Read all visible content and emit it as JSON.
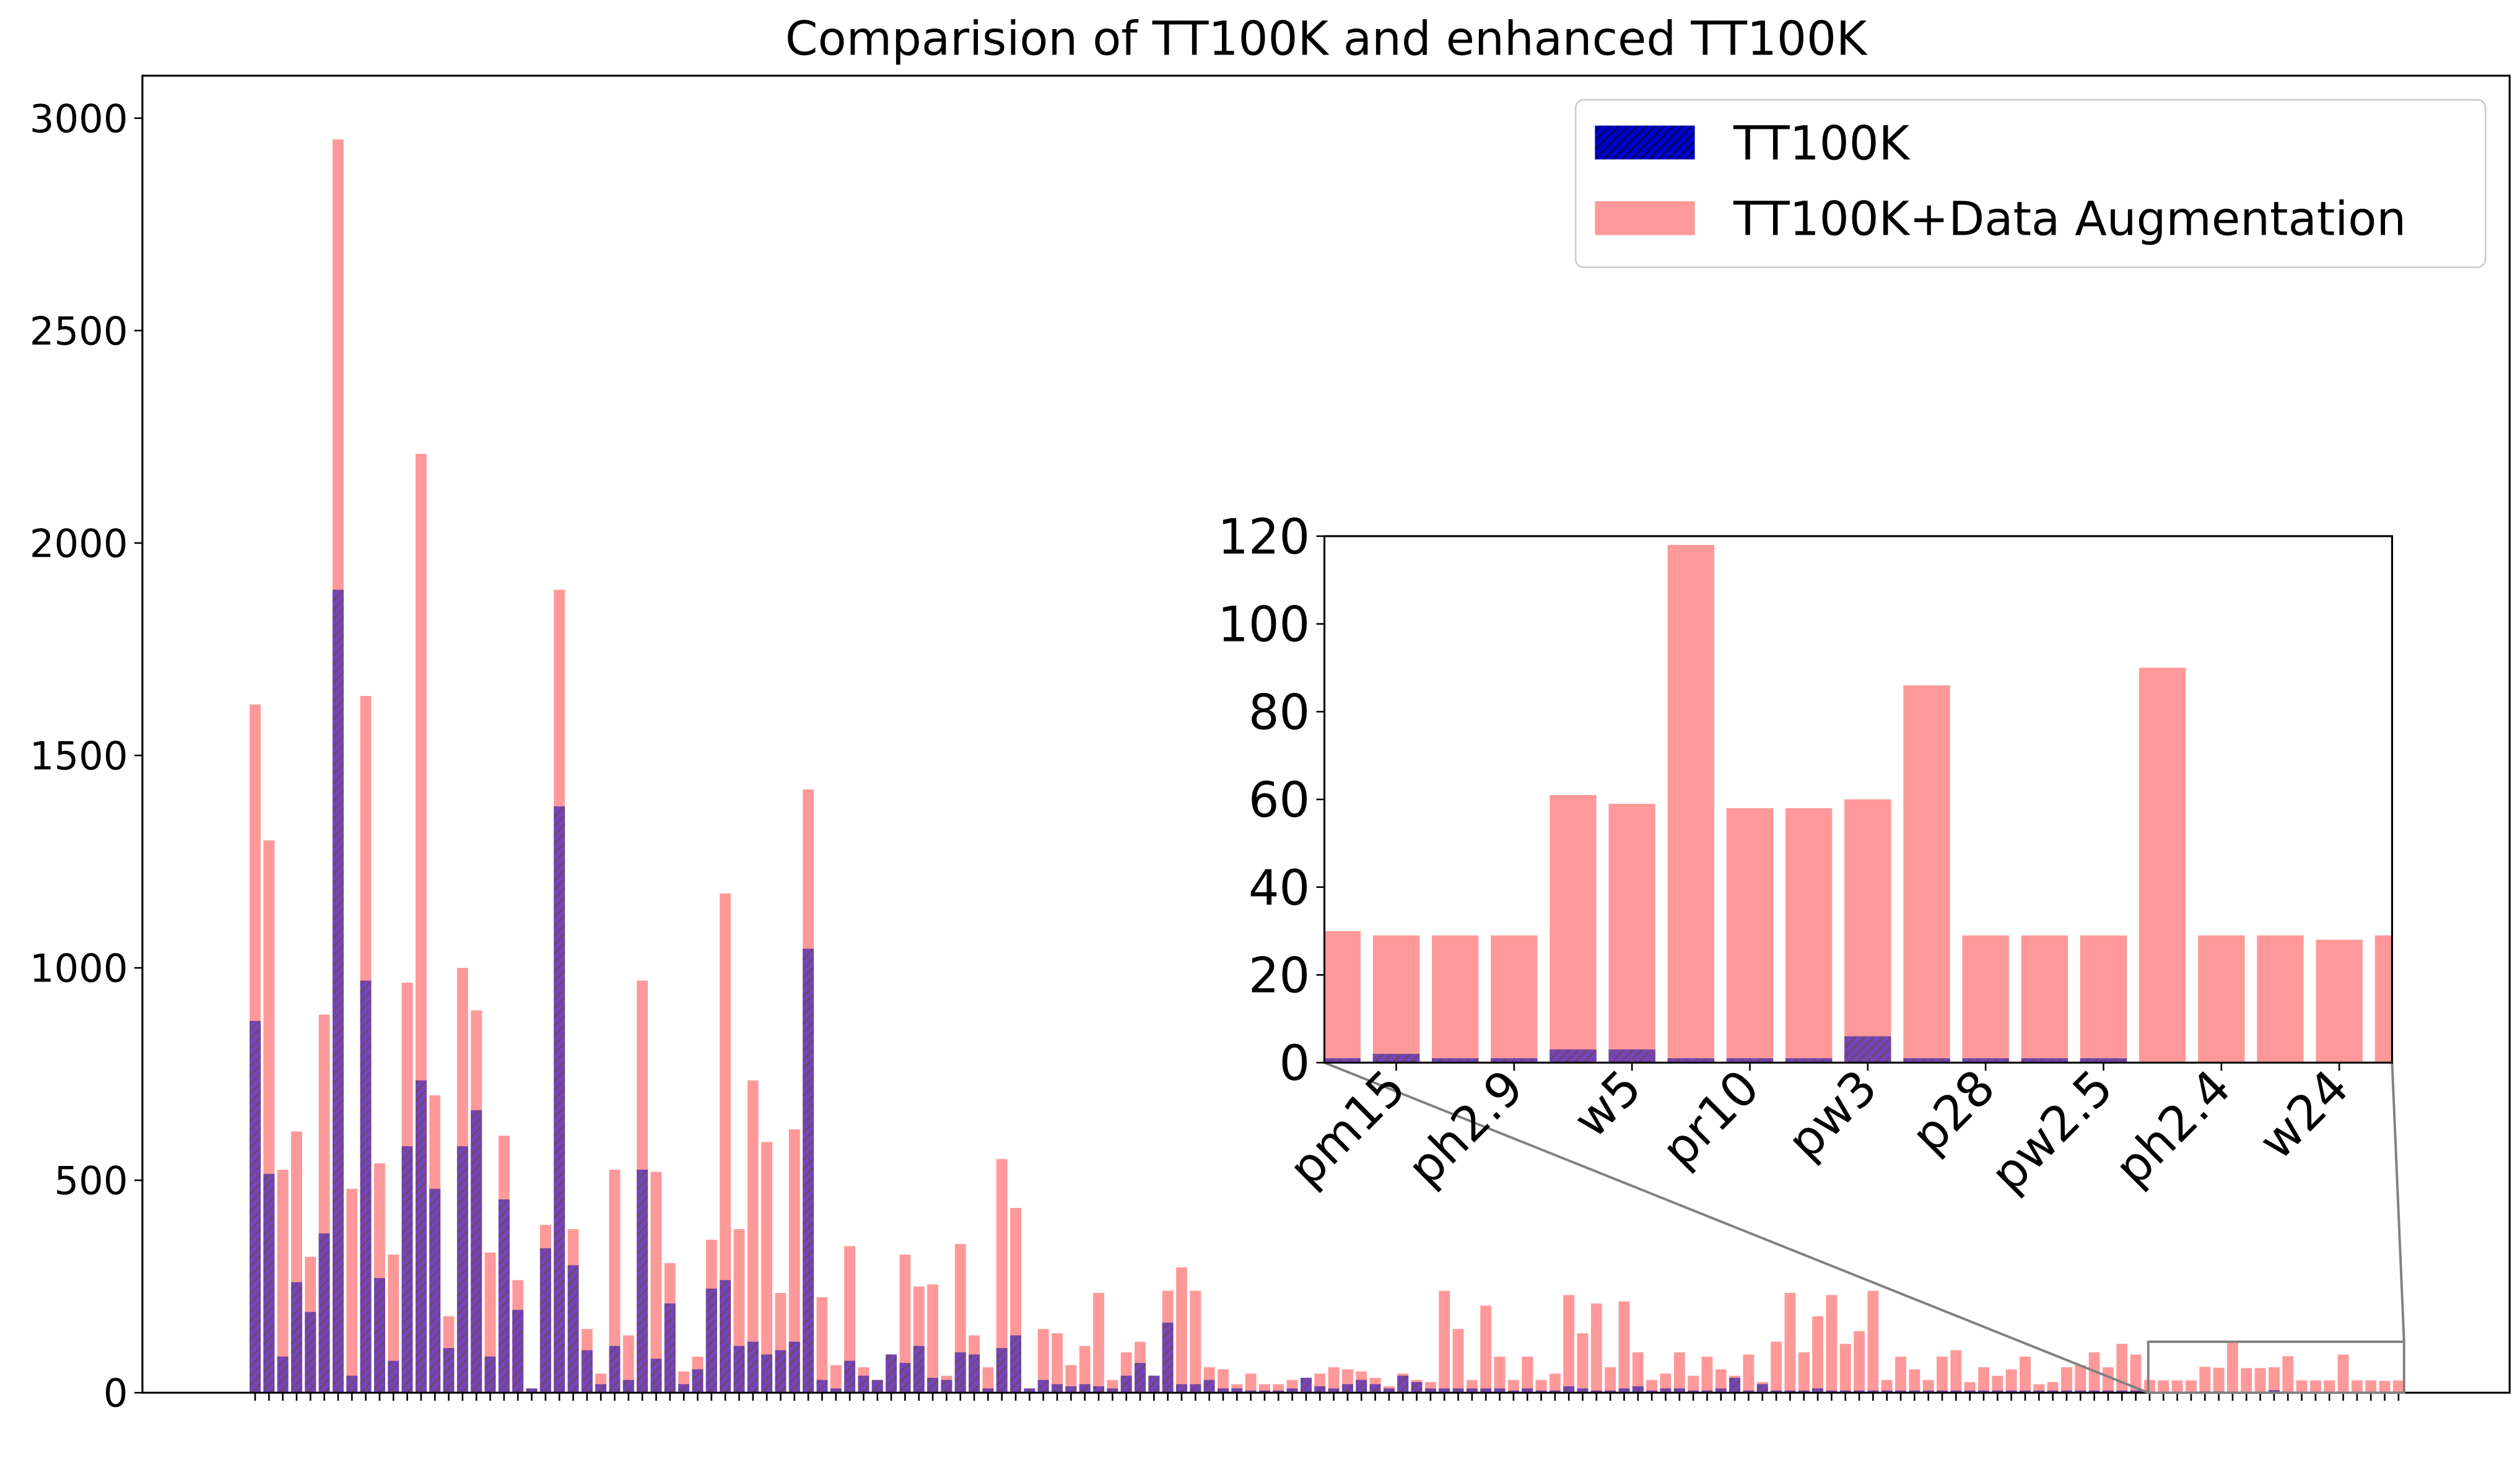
{
  "chart_data": [
    {
      "type": "bar",
      "title": "Comparision of TT100K and enhanced TT100K",
      "categories": [
        null,
        null,
        null,
        null,
        null,
        null,
        null,
        null,
        null,
        null,
        null,
        null,
        null,
        null,
        null,
        null,
        null,
        null,
        null,
        null,
        null,
        null,
        null,
        null,
        null,
        null,
        null,
        null,
        null,
        null,
        null,
        null,
        null,
        null,
        null,
        null,
        null,
        null,
        null,
        null,
        null,
        null,
        null,
        null,
        null,
        null,
        null,
        null,
        null,
        null,
        null,
        null,
        null,
        null,
        null,
        null,
        null,
        null,
        null,
        null,
        null,
        null,
        null,
        null,
        null,
        null,
        null,
        null,
        null,
        null,
        null,
        null,
        null,
        null,
        null,
        null,
        null,
        null,
        null,
        null,
        null,
        null,
        null,
        null,
        null,
        null,
        null,
        null,
        null,
        null,
        null,
        null,
        null,
        null,
        null,
        null,
        null,
        null,
        null,
        null,
        null,
        null,
        null,
        null,
        null,
        null,
        null,
        null,
        null,
        null,
        null,
        null,
        null,
        null,
        null,
        null,
        null,
        null,
        null,
        null,
        null,
        null,
        null,
        null,
        null,
        null,
        null,
        null,
        null,
        null,
        null,
        null,
        null,
        null,
        null,
        null,
        null,
        null,
        null,
        null,
        null,
        null,
        null,
        null,
        null,
        null,
        null,
        null,
        null,
        null,
        null,
        null,
        null,
        null,
        null,
        null
      ],
      "series": [
        {
          "name": "TT100K",
          "color": "#0000cc",
          "hatch": true,
          "values": [
            875,
            515,
            85,
            260,
            190,
            375,
            1890,
            40,
            970,
            270,
            75,
            580,
            735,
            480,
            105,
            580,
            665,
            85,
            455,
            195,
            10,
            340,
            1380,
            300,
            100,
            20,
            110,
            30,
            525,
            80,
            210,
            20,
            55,
            245,
            265,
            110,
            120,
            90,
            100,
            120,
            1045,
            30,
            10,
            75,
            40,
            30,
            90,
            70,
            110,
            35,
            30,
            95,
            90,
            10,
            105,
            135,
            10,
            30,
            20,
            15,
            20,
            15,
            10,
            40,
            70,
            40,
            165,
            20,
            20,
            30,
            10,
            10,
            5,
            5,
            5,
            10,
            35,
            15,
            10,
            20,
            30,
            20,
            10,
            40,
            25,
            10,
            10,
            10,
            10,
            10,
            10,
            5,
            10,
            5,
            5,
            15,
            10,
            5,
            5,
            10,
            15,
            5,
            10,
            10,
            5,
            5,
            10,
            35,
            5,
            20,
            5,
            5,
            5,
            10,
            5,
            5,
            5,
            5,
            5,
            5,
            5,
            5,
            5,
            5,
            5,
            5,
            5,
            5,
            5,
            5,
            5,
            5,
            5,
            5,
            5,
            5,
            5,
            1,
            2,
            1,
            1,
            3,
            3,
            1,
            1,
            1,
            6,
            1,
            1,
            1,
            1,
            0,
            0,
            0,
            0,
            0
          ]
        },
        {
          "name": "TT100K+Data Augmentation",
          "color": "#ff9999",
          "values": [
            1620,
            1300,
            525,
            615,
            320,
            890,
            2950,
            480,
            1640,
            540,
            325,
            965,
            2210,
            700,
            180,
            1000,
            900,
            330,
            605,
            265,
            10,
            395,
            1890,
            385,
            150,
            45,
            525,
            135,
            970,
            520,
            305,
            50,
            85,
            360,
            1175,
            385,
            735,
            590,
            235,
            620,
            1420,
            225,
            65,
            345,
            60,
            30,
            90,
            325,
            250,
            255,
            40,
            350,
            135,
            60,
            550,
            435,
            10,
            150,
            140,
            65,
            110,
            235,
            30,
            95,
            120,
            40,
            240,
            295,
            240,
            60,
            55,
            20,
            45,
            20,
            20,
            30,
            35,
            45,
            60,
            55,
            50,
            35,
            15,
            45,
            30,
            25,
            240,
            150,
            30,
            205,
            85,
            30,
            85,
            30,
            45,
            230,
            140,
            210,
            60,
            215,
            95,
            30,
            45,
            95,
            40,
            85,
            55,
            40,
            90,
            25,
            120,
            235,
            95,
            180,
            230,
            115,
            145,
            240,
            30,
            85,
            55,
            30,
            85,
            100,
            25,
            60,
            40,
            55,
            85,
            20,
            25,
            60,
            65,
            95,
            60,
            115,
            90,
            30,
            29,
            29,
            29,
            61,
            59,
            118,
            58,
            58,
            60,
            86,
            29,
            29,
            29,
            90,
            29,
            29,
            28,
            29
          ]
        }
      ],
      "ylim": [
        0,
        3100
      ],
      "yticks": [
        0,
        500,
        1000,
        1500,
        2000,
        2500,
        3000
      ],
      "legend": "upper right"
    },
    {
      "type": "bar",
      "categories": [
        null,
        "pm15",
        null,
        "ph2.9",
        null,
        "w5",
        null,
        "pr10",
        null,
        "pw3",
        null,
        "p28",
        null,
        "pw2.5",
        null,
        "ph2.4",
        null,
        "w24",
        null
      ],
      "series": [
        {
          "name": "TT100K",
          "color": "#0000cc",
          "hatch": true,
          "values": [
            1,
            2,
            1,
            1,
            3,
            3,
            1,
            1,
            1,
            6,
            1,
            1,
            1,
            1,
            0,
            0,
            0,
            0,
            0
          ]
        },
        {
          "name": "TT100K+Data Augmentation",
          "color": "#ff9999",
          "values": [
            30,
            29,
            29,
            29,
            61,
            59,
            118,
            58,
            58,
            60,
            86,
            29,
            29,
            29,
            90,
            29,
            29,
            28,
            29
          ]
        }
      ],
      "ylim": [
        0,
        120
      ],
      "yticks": [
        0,
        20,
        40,
        60,
        80,
        100,
        120
      ]
    }
  ]
}
